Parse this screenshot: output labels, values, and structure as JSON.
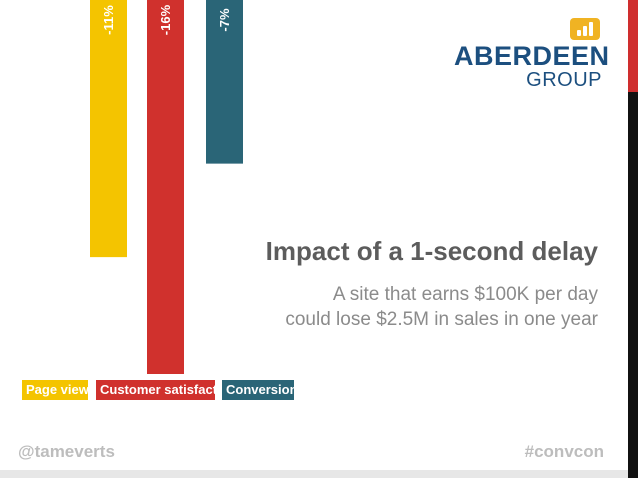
{
  "chart_data": {
    "type": "bar",
    "orientation": "vertical",
    "categories": [
      "Page views",
      "Customer satisfaction",
      "Conversions"
    ],
    "values": [
      -11,
      -16,
      -7
    ],
    "value_labels": [
      "-11%",
      "-16%",
      "-7%"
    ],
    "unit": "%",
    "title": "",
    "xlabel": "",
    "ylabel": "",
    "ylim": [
      -16,
      0
    ],
    "legend": {
      "position": "bottom-left"
    },
    "grid": false
  },
  "colors": {
    "page_views": "#f4c400",
    "customer_satisfaction": "#d0312d",
    "conversions": "#2a6577",
    "logo_blue": "#1c4f7f",
    "logo_gold": "#f0b323",
    "accent_red": "#cf2e2e"
  },
  "logo": {
    "title": "ABERDEEN",
    "subtitle": "GROUP",
    "icon": "bar-chart-icon"
  },
  "headline": "Impact of a 1-second delay",
  "description": [
    "A site that earns $100K per day",
    "could lose $2.5M in sales in one year"
  ],
  "footer": {
    "left": "@tameverts",
    "right": "#convcon"
  }
}
